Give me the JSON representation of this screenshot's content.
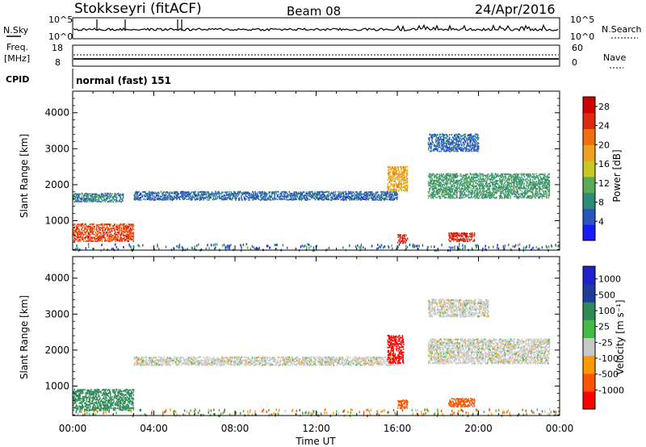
{
  "header": {
    "station": "Stokkseyri (fitACF)",
    "beam": "Beam 08",
    "date": "24/Apr/2016"
  },
  "status_panels": {
    "nsky_label": "N.Sky",
    "nsearch_label": "N.Search",
    "freq_label_1": "Freq.",
    "freq_label_2": "[MHz]",
    "nave_label": "Nave",
    "cpid_label": "CPID",
    "cpid_value": "normal (fast) 151",
    "nsky_ticks": [
      "10^5",
      "10^0"
    ],
    "nsearch_ticks": [
      "10^5",
      "10^0"
    ],
    "freq_ticks": [
      "18",
      "8"
    ],
    "nave_ticks": [
      "60",
      "0"
    ]
  },
  "colors": {
    "power_scale": [
      "#1a1aff",
      "#2a55c0",
      "#2e8b7a",
      "#5aaa5a",
      "#c8c820",
      "#f0a020",
      "#f07010",
      "#e02a10",
      "#cc0000"
    ],
    "velocity_scale": [
      "#ff0000",
      "#ff5500",
      "#ff9900",
      "#c8c8c8",
      "#44bb44",
      "#2e8b57",
      "#1e3c99",
      "#2222cc"
    ]
  },
  "chart_data": [
    {
      "type": "heatmap",
      "panel": "power",
      "ylabel": "Slant Range [km]",
      "xlabel": "Time UT",
      "x_ticks": [
        "00:00",
        "04:00",
        "08:00",
        "12:00",
        "16:00",
        "20:00",
        "00:00"
      ],
      "y_ticks": [
        1000,
        2000,
        3000,
        4000
      ],
      "xlim_hours": [
        0,
        24
      ],
      "ylim_km": [
        180,
        4600
      ],
      "colorbar_label": "Power [dB]",
      "colorbar_ticks": [
        4,
        8,
        12,
        16,
        20,
        24,
        28
      ],
      "colorbar_range": [
        0,
        30
      ],
      "regions": [
        {
          "t": [
            0,
            3
          ],
          "r": [
            400,
            900
          ],
          "value": 24
        },
        {
          "t": [
            0,
            2.5
          ],
          "r": [
            1500,
            1750
          ],
          "value": 8
        },
        {
          "t": [
            3,
            16
          ],
          "r": [
            1550,
            1800
          ],
          "value": 6
        },
        {
          "t": [
            15.5,
            16.5
          ],
          "r": [
            1800,
            2500
          ],
          "value": 18
        },
        {
          "t": [
            16,
            16.5
          ],
          "r": [
            350,
            600
          ],
          "value": 26
        },
        {
          "t": [
            18.5,
            19.8
          ],
          "r": [
            400,
            650
          ],
          "value": 26
        },
        {
          "t": [
            17.5,
            23.5
          ],
          "r": [
            1600,
            2300
          ],
          "value": 10
        },
        {
          "t": [
            17.5,
            20
          ],
          "r": [
            2900,
            3400
          ],
          "value": 6
        }
      ]
    },
    {
      "type": "heatmap",
      "panel": "velocity",
      "ylabel": "Slant Range [km]",
      "xlabel": "Time UT",
      "x_ticks": [
        "00:00",
        "04:00",
        "08:00",
        "12:00",
        "16:00",
        "20:00",
        "00:00"
      ],
      "y_ticks": [
        1000,
        2000,
        3000,
        4000
      ],
      "xlim_hours": [
        0,
        24
      ],
      "ylim_km": [
        180,
        4600
      ],
      "colorbar_label": "Velocity [m s⁻¹]",
      "colorbar_ticks": [
        "1000",
        "500",
        "100",
        "25",
        "-25",
        "-100",
        "-500",
        "-1000"
      ],
      "regions": [
        {
          "t": [
            0,
            3
          ],
          "r": [
            300,
            900
          ],
          "value": 300
        },
        {
          "t": [
            3,
            16
          ],
          "r": [
            1550,
            1800
          ],
          "value": 0
        },
        {
          "t": [
            15.5,
            16.3
          ],
          "r": [
            1600,
            2400
          ],
          "value": -800
        },
        {
          "t": [
            16,
            16.5
          ],
          "r": [
            350,
            600
          ],
          "value": -150
        },
        {
          "t": [
            18.5,
            19.8
          ],
          "r": [
            400,
            650
          ],
          "value": -150
        },
        {
          "t": [
            17.5,
            23.5
          ],
          "r": [
            1600,
            2300
          ],
          "value": 0
        },
        {
          "t": [
            17.5,
            20.5
          ],
          "r": [
            2900,
            3400
          ],
          "value": 0
        }
      ]
    }
  ]
}
